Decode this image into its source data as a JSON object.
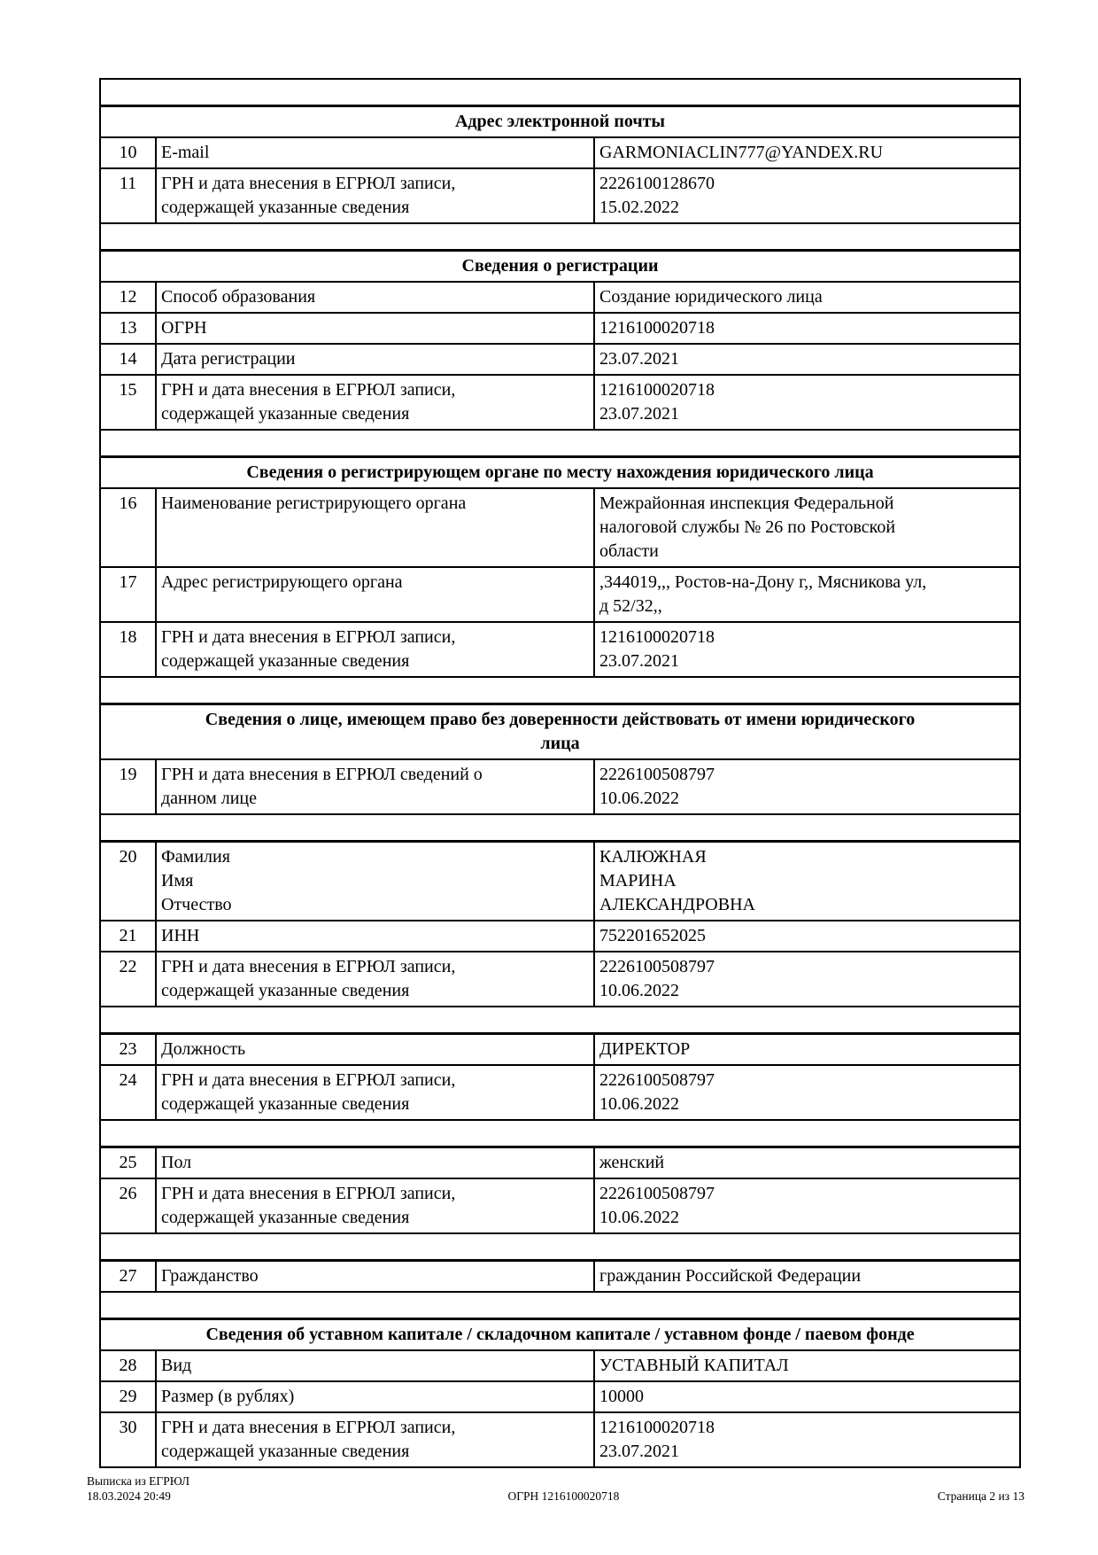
{
  "document": {
    "rows": [
      {
        "type": "spacer"
      },
      {
        "type": "section",
        "title": "Адрес электронной почты"
      },
      {
        "type": "data",
        "num": "10",
        "label": "E-mail",
        "value": "GARMONIACLIN777@YANDEX.RU"
      },
      {
        "type": "data",
        "num": "11",
        "label": "ГРН и дата внесения в ЕГРЮЛ записи,\nсодержащей указанные сведения",
        "value": "2226100128670\n15.02.2022"
      },
      {
        "type": "spacer"
      },
      {
        "type": "section",
        "title": "Сведения о регистрации"
      },
      {
        "type": "data",
        "num": "12",
        "label": "Способ образования",
        "value": "Создание юридического лица"
      },
      {
        "type": "data",
        "num": "13",
        "label": "ОГРН",
        "value": "1216100020718"
      },
      {
        "type": "data",
        "num": "14",
        "label": "Дата регистрации",
        "value": "23.07.2021"
      },
      {
        "type": "data",
        "num": "15",
        "label": "ГРН и дата внесения в ЕГРЮЛ записи,\nсодержащей указанные сведения",
        "value": "1216100020718\n23.07.2021"
      },
      {
        "type": "spacer"
      },
      {
        "type": "section",
        "title": "Сведения о регистрирующем органе по месту нахождения юридического лица"
      },
      {
        "type": "data",
        "num": "16",
        "label": "Наименование регистрирующего органа",
        "value": "Межрайонная инспекция Федеральной\nналоговой службы № 26 по Ростовской\nобласти"
      },
      {
        "type": "data",
        "num": "17",
        "label": "Адрес регистрирующего органа",
        "value": ",344019,,, Ростов-на-Дону г,, Мясникова ул,\nд 52/32,,"
      },
      {
        "type": "data",
        "num": "18",
        "label": "ГРН и дата внесения в ЕГРЮЛ записи,\nсодержащей указанные сведения",
        "value": "1216100020718\n23.07.2021"
      },
      {
        "type": "spacer"
      },
      {
        "type": "section",
        "title": "Сведения о лице, имеющем право без доверенности действовать от имени юридического\nлица"
      },
      {
        "type": "data",
        "num": "19",
        "label": "ГРН и дата внесения в ЕГРЮЛ сведений о\nданном лице",
        "value": "2226100508797\n10.06.2022"
      },
      {
        "type": "spacer"
      },
      {
        "type": "data",
        "num": "20",
        "label": "Фамилия\nИмя\nОтчество",
        "value": "КАЛЮЖНАЯ\nМАРИНА\nАЛЕКСАНДРОВНА"
      },
      {
        "type": "data",
        "num": "21",
        "label": "ИНН",
        "value": "752201652025"
      },
      {
        "type": "data",
        "num": "22",
        "label": "ГРН и дата внесения в ЕГРЮЛ записи,\nсодержащей указанные сведения",
        "value": "2226100508797\n10.06.2022"
      },
      {
        "type": "spacer"
      },
      {
        "type": "data",
        "num": "23",
        "label": "Должность",
        "value": "ДИРЕКТОР"
      },
      {
        "type": "data",
        "num": "24",
        "label": "ГРН и дата внесения в ЕГРЮЛ записи,\nсодержащей указанные сведения",
        "value": "2226100508797\n10.06.2022"
      },
      {
        "type": "spacer"
      },
      {
        "type": "data",
        "num": "25",
        "label": "Пол",
        "value": "женский"
      },
      {
        "type": "data",
        "num": "26",
        "label": "ГРН и дата внесения в ЕГРЮЛ записи,\nсодержащей указанные сведения",
        "value": "2226100508797\n10.06.2022"
      },
      {
        "type": "spacer"
      },
      {
        "type": "data",
        "num": "27",
        "label": "Гражданство",
        "value": "гражданин Российской Федерации"
      },
      {
        "type": "spacer"
      },
      {
        "type": "section",
        "title": "Сведения об уставном капитале / складочном капитале / уставном фонде / паевом фонде"
      },
      {
        "type": "data",
        "num": "28",
        "label": "Вид",
        "value": "УСТАВНЫЙ КАПИТАЛ"
      },
      {
        "type": "data",
        "num": "29",
        "label": "Размер (в рублях)",
        "value": "10000"
      },
      {
        "type": "data",
        "num": "30",
        "label": "ГРН и дата внесения в ЕГРЮЛ записи,\nсодержащей указанные сведения",
        "value": "1216100020718\n23.07.2021"
      }
    ],
    "footer": {
      "doc_type": "Выписка из ЕГРЮЛ",
      "generated_at": "18.03.2024 20:49",
      "ogrn_line": "ОГРН 1216100020718",
      "page_indicator": "Страница 2 из 13"
    }
  }
}
